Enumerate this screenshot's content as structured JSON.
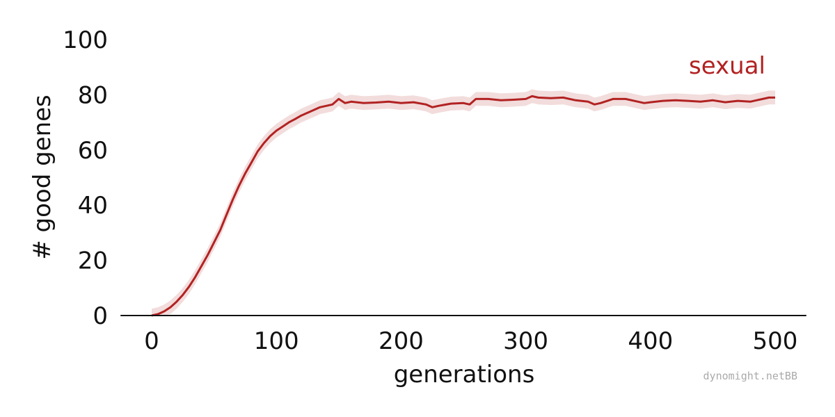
{
  "chart_data": {
    "type": "line",
    "title": "",
    "xlabel": "generations",
    "ylabel": "# good genes",
    "xlim": [
      -25,
      525
    ],
    "ylim": [
      0,
      100
    ],
    "x_ticks": [
      0,
      100,
      200,
      300,
      400,
      500
    ],
    "y_ticks": [
      0,
      20,
      40,
      60,
      80,
      100
    ],
    "grid": false,
    "series": [
      {
        "name": "sexual",
        "color": "#b22222",
        "band_color": "#f2dcdc",
        "band_halfwidth": 2.5,
        "points": [
          [
            0,
            0
          ],
          [
            5,
            0.5
          ],
          [
            10,
            1.5
          ],
          [
            15,
            3
          ],
          [
            20,
            5
          ],
          [
            25,
            7.5
          ],
          [
            30,
            10.5
          ],
          [
            35,
            14
          ],
          [
            40,
            18
          ],
          [
            45,
            22
          ],
          [
            50,
            26.5
          ],
          [
            55,
            31
          ],
          [
            60,
            36.5
          ],
          [
            65,
            42
          ],
          [
            70,
            47
          ],
          [
            75,
            51.5
          ],
          [
            80,
            55.5
          ],
          [
            85,
            59.5
          ],
          [
            90,
            62.5
          ],
          [
            95,
            65
          ],
          [
            100,
            67
          ],
          [
            105,
            68.5
          ],
          [
            110,
            70
          ],
          [
            115,
            71.2
          ],
          [
            120,
            72.5
          ],
          [
            125,
            73.5
          ],
          [
            130,
            74.5
          ],
          [
            135,
            75.5
          ],
          [
            140,
            76
          ],
          [
            145,
            76.5
          ],
          [
            150,
            78.5
          ],
          [
            155,
            77
          ],
          [
            160,
            77.5
          ],
          [
            170,
            77
          ],
          [
            180,
            77.2
          ],
          [
            190,
            77.5
          ],
          [
            200,
            77
          ],
          [
            210,
            77.3
          ],
          [
            220,
            76.5
          ],
          [
            225,
            75.5
          ],
          [
            230,
            76
          ],
          [
            240,
            76.8
          ],
          [
            250,
            77
          ],
          [
            255,
            76.5
          ],
          [
            260,
            78.5
          ],
          [
            270,
            78.5
          ],
          [
            280,
            78
          ],
          [
            290,
            78.2
          ],
          [
            300,
            78.5
          ],
          [
            305,
            79.5
          ],
          [
            310,
            79
          ],
          [
            320,
            78.8
          ],
          [
            330,
            79
          ],
          [
            340,
            78
          ],
          [
            350,
            77.5
          ],
          [
            355,
            76.5
          ],
          [
            360,
            77
          ],
          [
            370,
            78.5
          ],
          [
            380,
            78.5
          ],
          [
            390,
            77.5
          ],
          [
            395,
            77
          ],
          [
            400,
            77.3
          ],
          [
            410,
            77.8
          ],
          [
            420,
            78
          ],
          [
            430,
            77.8
          ],
          [
            440,
            77.5
          ],
          [
            450,
            78
          ],
          [
            460,
            77.3
          ],
          [
            470,
            77.8
          ],
          [
            480,
            77.5
          ],
          [
            485,
            78
          ],
          [
            490,
            78.5
          ],
          [
            495,
            79
          ],
          [
            500,
            79
          ]
        ]
      }
    ],
    "credit": "dynomight.netBB"
  }
}
